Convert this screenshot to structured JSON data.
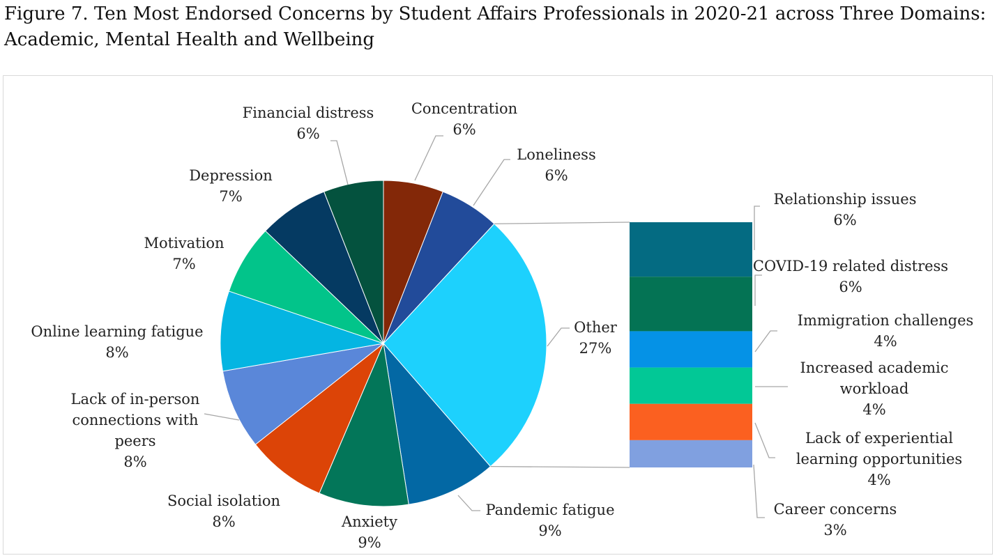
{
  "figure_title": "Figure 7. Ten Most Endorsed Concerns by Student Affairs Professionals in 2020-21 across Three Domains: Academic, Mental Health and Wellbeing",
  "chart_data": {
    "type": "pie",
    "subtype": "bar-of-pie",
    "title": "",
    "slices": [
      {
        "label": "Concentration",
        "value": 6,
        "display": "6%",
        "color": "#832808"
      },
      {
        "label": "Loneliness",
        "value": 6,
        "display": "6%",
        "color": "#224b9a"
      },
      {
        "label": "Other",
        "value": 27,
        "display": "27%",
        "color": "#1dd1fd"
      },
      {
        "label": "Pandemic fatigue",
        "value": 9,
        "display": "9%",
        "color": "#0368a4"
      },
      {
        "label": "Anxiety",
        "value": 9,
        "display": "9%",
        "color": "#037659"
      },
      {
        "label": "Social isolation",
        "value": 8,
        "display": "8%",
        "color": "#dc4407"
      },
      {
        "label": "Lack of in-person connections with peers",
        "value": 8,
        "display": "8%",
        "color": "#5a87d9"
      },
      {
        "label": "Online learning fatigue",
        "value": 8,
        "display": "8%",
        "color": "#04b5e2"
      },
      {
        "label": "Motivation",
        "value": 7,
        "display": "7%",
        "color": "#02c48a"
      },
      {
        "label": "Depression",
        "value": 7,
        "display": "7%",
        "color": "#053a62"
      },
      {
        "label": "Financial distress",
        "value": 6,
        "display": "6%",
        "color": "#04523e"
      }
    ],
    "breakdown_of": "Other",
    "breakdown": [
      {
        "label": "Relationship issues",
        "value": 6,
        "display": "6%",
        "color": "#046b82"
      },
      {
        "label": "COVID-19 related distress",
        "value": 6,
        "display": "6%",
        "color": "#047354"
      },
      {
        "label": "Immigration challenges",
        "value": 4,
        "display": "4%",
        "color": "#0592e6"
      },
      {
        "label": "Increased academic workload",
        "value": 4,
        "display": "4%",
        "color": "#02c896"
      },
      {
        "label": "Lack of experiential learning opportunities",
        "value": 4,
        "display": "4%",
        "color": "#fb6020"
      },
      {
        "label": "Career concerns",
        "value": 3,
        "display": "3%",
        "color": "#80a0e0"
      }
    ]
  }
}
